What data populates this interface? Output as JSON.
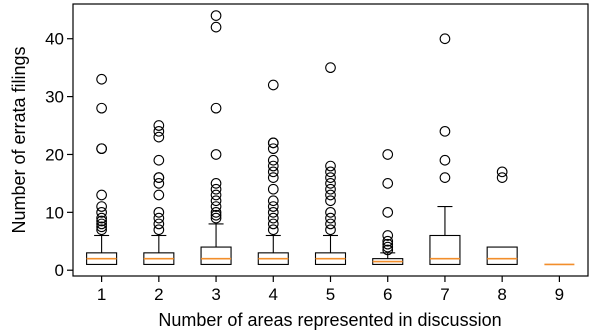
{
  "chart_data": {
    "type": "box",
    "title": "",
    "xlabel": "Number of areas represented in discussion",
    "ylabel": "Number of errata filings",
    "categories": [
      "1",
      "2",
      "3",
      "4",
      "5",
      "6",
      "7",
      "8",
      "9"
    ],
    "ylim": [
      -1,
      46
    ],
    "yticks": [
      0,
      10,
      20,
      30,
      40
    ],
    "grid": false,
    "median_color": "#f28e2b",
    "boxes": [
      {
        "category": "1",
        "q1": 1,
        "median": 2,
        "q3": 3,
        "whisker_low": 1,
        "whisker_high": 6,
        "fliers": [
          7,
          7.5,
          8,
          8.5,
          9,
          10,
          11,
          13,
          21,
          21,
          28,
          33
        ]
      },
      {
        "category": "2",
        "q1": 1,
        "median": 2,
        "q3": 3,
        "whisker_low": 1,
        "whisker_high": 6,
        "fliers": [
          7,
          8,
          9,
          10,
          13,
          15,
          16,
          16,
          19,
          23,
          24,
          25
        ]
      },
      {
        "category": "3",
        "q1": 1,
        "median": 2,
        "q3": 4,
        "whisker_low": 1,
        "whisker_high": 8,
        "fliers": [
          9,
          9.5,
          10,
          11,
          12,
          13,
          14,
          15,
          20,
          28,
          42,
          44
        ]
      },
      {
        "category": "4",
        "q1": 1,
        "median": 2,
        "q3": 3,
        "whisker_low": 1,
        "whisker_high": 6,
        "fliers": [
          7,
          8,
          9,
          10,
          11,
          12,
          14,
          16,
          17,
          18,
          19,
          21,
          22,
          22,
          32
        ]
      },
      {
        "category": "5",
        "q1": 1,
        "median": 2,
        "q3": 3,
        "whisker_low": 1,
        "whisker_high": 6,
        "fliers": [
          7,
          8,
          9,
          10,
          12,
          13,
          14,
          15,
          16,
          17,
          18,
          35
        ]
      },
      {
        "category": "6",
        "q1": 1,
        "median": 1.5,
        "q3": 2,
        "whisker_low": 1,
        "whisker_high": 3,
        "fliers": [
          3.5,
          4,
          4.5,
          5,
          6,
          10,
          15,
          20
        ]
      },
      {
        "category": "7",
        "q1": 1,
        "median": 2,
        "q3": 6,
        "whisker_low": 1,
        "whisker_high": 11,
        "fliers": [
          16,
          19,
          24,
          40
        ]
      },
      {
        "category": "8",
        "q1": 1,
        "median": 2,
        "q3": 4,
        "whisker_low": 1,
        "whisker_high": 4,
        "fliers": [
          16,
          17
        ]
      },
      {
        "category": "9",
        "q1": 1,
        "median": 1,
        "q3": 1,
        "whisker_low": 1,
        "whisker_high": 1,
        "fliers": []
      }
    ]
  }
}
